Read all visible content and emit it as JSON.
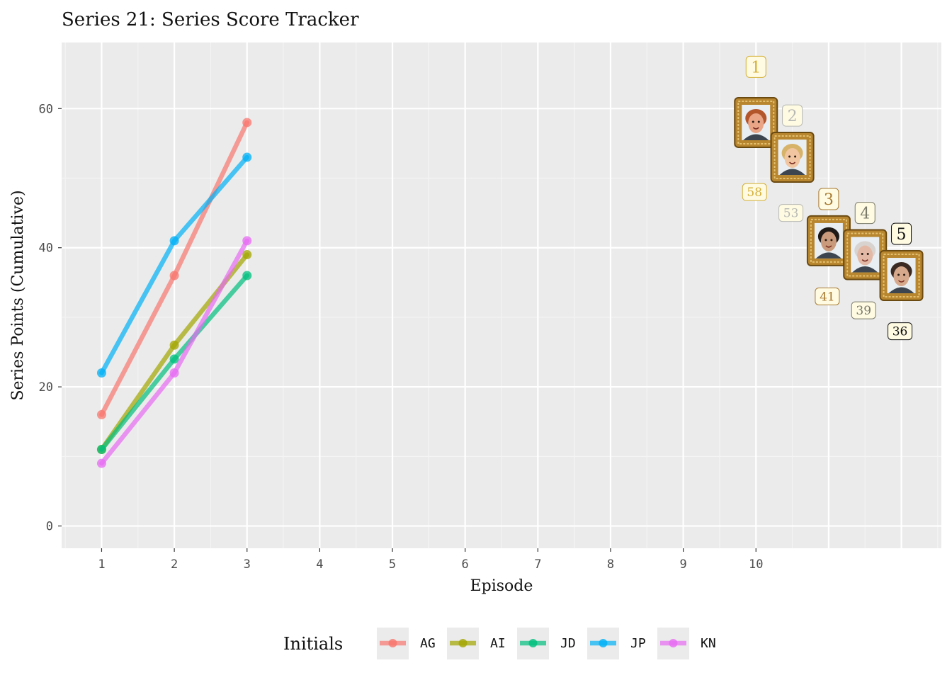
{
  "chart_data": {
    "type": "line",
    "title": "Series 21: Series Score Tracker",
    "xlabel": "Episode",
    "ylabel": "Series Points (Cumulative)",
    "x_ticks": [
      1,
      2,
      3,
      4,
      5,
      6,
      7,
      8,
      9,
      10
    ],
    "y_ticks": [
      0,
      20,
      40,
      60
    ],
    "xlim": [
      0.45,
      12.55
    ],
    "ylim": [
      -3.2,
      69.5
    ],
    "grid": true,
    "legend_title": "Initials",
    "legend_position": "bottom",
    "series": [
      {
        "name": "AG",
        "color": "#F8766D",
        "x": [
          1,
          2,
          3
        ],
        "values": [
          16,
          36,
          58
        ]
      },
      {
        "name": "AI",
        "color": "#A3A500",
        "x": [
          1,
          2,
          3
        ],
        "values": [
          11,
          26,
          39
        ]
      },
      {
        "name": "JD",
        "color": "#00BF7D",
        "x": [
          1,
          2,
          3
        ],
        "values": [
          11,
          24,
          36
        ]
      },
      {
        "name": "JP",
        "color": "#00B0F6",
        "x": [
          1,
          2,
          3
        ],
        "values": [
          22,
          41,
          53
        ]
      },
      {
        "name": "KN",
        "color": "#E76BF3",
        "x": [
          1,
          2,
          3
        ],
        "values": [
          9,
          22,
          41
        ]
      }
    ],
    "standings": [
      {
        "rank": "1",
        "score": "58",
        "x": 10,
        "y": 58,
        "rank_y": 66,
        "score_y": 48,
        "color": "#D4AF37",
        "face": "#e9a586",
        "hair": "#b4562c"
      },
      {
        "rank": "2",
        "score": "53",
        "x": 10.5,
        "y": 53,
        "rank_y": 59,
        "score_y": 45,
        "color": "#B8B9B4",
        "face": "#f1c5a0",
        "hair": "#d7b36a"
      },
      {
        "rank": "3",
        "score": "41",
        "x": 11,
        "y": 41,
        "rank_y": 47,
        "score_y": 33,
        "color": "#A87A30",
        "face": "#c99a7b",
        "hair": "#1f1a17"
      },
      {
        "rank": "4",
        "score": "39",
        "x": 11.5,
        "y": 39,
        "rank_y": 45,
        "score_y": 31,
        "color": "#7a7a6a",
        "face": "#e3b9a6",
        "hair": "#d9d3cf"
      },
      {
        "rank": "5",
        "score": "36",
        "x": 12,
        "y": 36,
        "rank_y": 42,
        "score_y": 28,
        "color": "#111111",
        "face": "#d7a98c",
        "hair": "#3a2a22"
      }
    ]
  }
}
